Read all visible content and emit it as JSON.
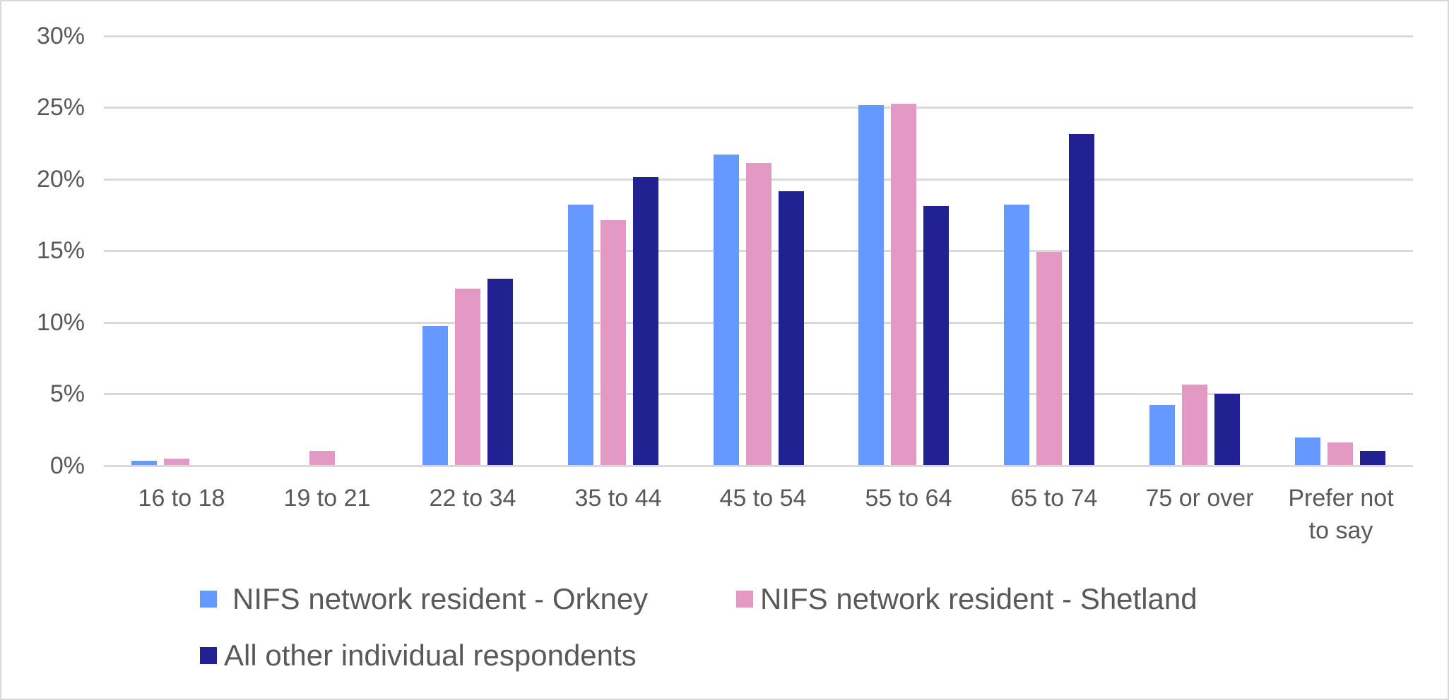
{
  "chart_data": {
    "type": "bar",
    "title": "",
    "xlabel": "",
    "ylabel": "",
    "ylim": [
      0,
      30
    ],
    "yticks": [
      "0%",
      "5%",
      "10%",
      "15%",
      "20%",
      "25%",
      "30%"
    ],
    "grid": true,
    "legend_position": "bottom",
    "categories": [
      "16 to 18",
      "19 to 21",
      "22 to 34",
      "35 to 44",
      "45 to 54",
      "55 to 64",
      "65 to 74",
      "75 or over",
      "Prefer not to say"
    ],
    "series": [
      {
        "name": "NIFS network resident - Orkney",
        "color": "#6699ff",
        "values": [
          0.3,
          0,
          9.7,
          18.2,
          21.7,
          25.1,
          18.2,
          4.2,
          1.9
        ]
      },
      {
        "name": "NIFS network resident - Shetland",
        "color": "#e399c4",
        "values": [
          0.45,
          1.0,
          12.3,
          17.1,
          21.1,
          25.2,
          14.9,
          5.6,
          1.6
        ]
      },
      {
        "name": "All other individual respondents",
        "color": "#222191",
        "values": [
          0,
          0,
          13.0,
          20.1,
          19.1,
          18.1,
          23.1,
          5.0,
          1.0
        ]
      }
    ]
  },
  "axis": {
    "y_labels": [
      "30%",
      "25%",
      "20%",
      "15%",
      "10%",
      "5%",
      "0%"
    ],
    "x_labels": [
      "16 to 18",
      "19 to 21",
      "22 to 34",
      "35 to 44",
      "45 to 54",
      "55 to 64",
      "65 to 74",
      "75 or over",
      "Prefer not\nto say"
    ]
  },
  "legend": {
    "orkney": "NIFS network resident - Orkney",
    "shetland": "NIFS network resident - Shetland",
    "other": "All other individual respondents"
  }
}
